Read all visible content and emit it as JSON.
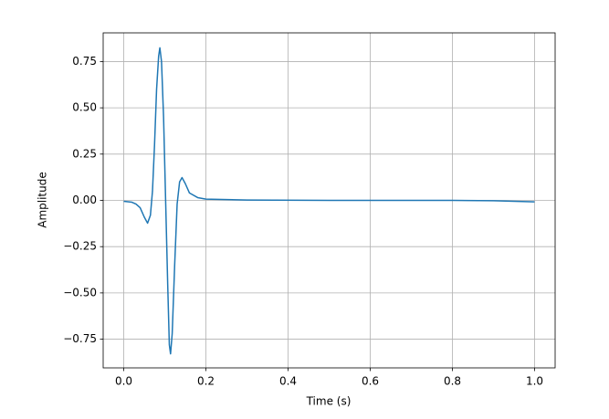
{
  "chart_data": {
    "type": "line",
    "xlabel": "Time (s)",
    "ylabel": "Amplitude",
    "x": [
      0.0,
      0.02,
      0.03,
      0.04,
      0.05,
      0.058,
      0.065,
      0.07,
      0.075,
      0.08,
      0.085,
      0.088,
      0.092,
      0.097,
      0.102,
      0.107,
      0.111,
      0.114,
      0.118,
      0.124,
      0.13,
      0.136,
      0.142,
      0.15,
      0.16,
      0.18,
      0.2,
      0.3,
      0.5,
      0.8,
      0.9,
      1.0
    ],
    "series": [
      {
        "color": "#1f77b4",
        "values": [
          -0.005,
          -0.01,
          -0.02,
          -0.04,
          -0.09,
          -0.123,
          -0.08,
          0.05,
          0.3,
          0.6,
          0.78,
          0.824,
          0.75,
          0.45,
          0.0,
          -0.45,
          -0.78,
          -0.829,
          -0.72,
          -0.35,
          -0.02,
          0.1,
          0.123,
          0.09,
          0.04,
          0.015,
          0.007,
          0.002,
          0.0,
          0.0,
          -0.002,
          -0.008
        ]
      }
    ],
    "xlim": [
      -0.05,
      1.05
    ],
    "ylim": [
      -0.905,
      0.905
    ],
    "xticks": [
      {
        "value": 0.0,
        "label": "0.0"
      },
      {
        "value": 0.2,
        "label": "0.2"
      },
      {
        "value": 0.4,
        "label": "0.4"
      },
      {
        "value": 0.6,
        "label": "0.6"
      },
      {
        "value": 0.8,
        "label": "0.8"
      },
      {
        "value": 1.0,
        "label": "1.0"
      }
    ],
    "yticks": [
      {
        "value": -0.75,
        "label": "−0.75"
      },
      {
        "value": -0.5,
        "label": "−0.50"
      },
      {
        "value": -0.25,
        "label": "−0.25"
      },
      {
        "value": 0,
        "label": "0.00"
      },
      0.25,
      {
        "value": 0.5,
        "label": "0.50"
      },
      0.75
    ],
    "grid": true
  }
}
